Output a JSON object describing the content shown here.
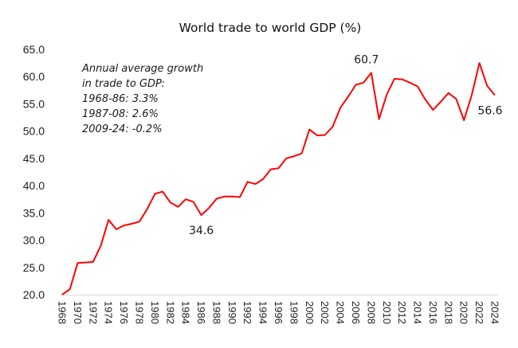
{
  "chart_data": {
    "type": "line",
    "title": "World trade to world GDP (%)",
    "xlabel": "",
    "ylabel": "",
    "ylim": [
      20,
      65
    ],
    "yticks": [
      "20.0",
      "25.0",
      "30.0",
      "35.0",
      "40.0",
      "45.0",
      "50.0",
      "55.0",
      "60.0",
      "65.0"
    ],
    "xticks": [
      "1968",
      "1970",
      "1972",
      "1974",
      "1976",
      "1978",
      "1980",
      "1982",
      "1984",
      "1986",
      "1988",
      "1990",
      "1992",
      "1994",
      "1996",
      "1998",
      "2000",
      "2002",
      "2004",
      "2006",
      "2008",
      "2010",
      "2012",
      "2014",
      "2016",
      "2018",
      "2020",
      "2022",
      "2024"
    ],
    "grid": false,
    "legend": "none",
    "line_color": "#ff0000",
    "series": [
      {
        "name": "World trade to world GDP (%)",
        "x": [
          1968,
          1969,
          1970,
          1971,
          1972,
          1973,
          1974,
          1975,
          1976,
          1977,
          1978,
          1979,
          1980,
          1981,
          1982,
          1983,
          1984,
          1985,
          1986,
          1987,
          1988,
          1989,
          1990,
          1991,
          1992,
          1993,
          1994,
          1995,
          1996,
          1997,
          1998,
          1999,
          2000,
          2001,
          2002,
          2003,
          2004,
          2005,
          2006,
          2007,
          2008,
          2009,
          2010,
          2011,
          2012,
          2013,
          2014,
          2015,
          2016,
          2017,
          2018,
          2019,
          2020,
          2021,
          2022,
          2023,
          2024
        ],
        "values": [
          20.0,
          21.0,
          25.8,
          25.9,
          26.0,
          29.0,
          33.7,
          32.0,
          32.7,
          33.0,
          33.4,
          35.7,
          38.5,
          38.9,
          36.9,
          36.1,
          37.5,
          37.0,
          34.6,
          35.9,
          37.6,
          38.0,
          38.0,
          37.9,
          40.7,
          40.3,
          41.2,
          43.0,
          43.2,
          45.0,
          45.4,
          45.9,
          50.3,
          49.2,
          49.3,
          50.8,
          54.3,
          56.3,
          58.5,
          58.9,
          60.7,
          52.2,
          56.7,
          59.6,
          59.5,
          58.9,
          58.2,
          55.8,
          53.9,
          55.4,
          57.0,
          55.9,
          52.0,
          56.6,
          62.5,
          58.3,
          56.6
        ]
      }
    ],
    "data_labels": [
      {
        "year": 1986,
        "value": 34.6,
        "text": "34.6"
      },
      {
        "year": 2008,
        "value": 60.7,
        "text": "60.7"
      },
      {
        "year": 2024,
        "value": 56.6,
        "text": "56.6"
      }
    ],
    "annotation": {
      "lines": [
        "Annual average growth",
        "in trade to GDP:",
        "1968-86: 3.3%",
        "1987-08: 2.6%",
        "2009-24: -0.2%"
      ]
    }
  }
}
